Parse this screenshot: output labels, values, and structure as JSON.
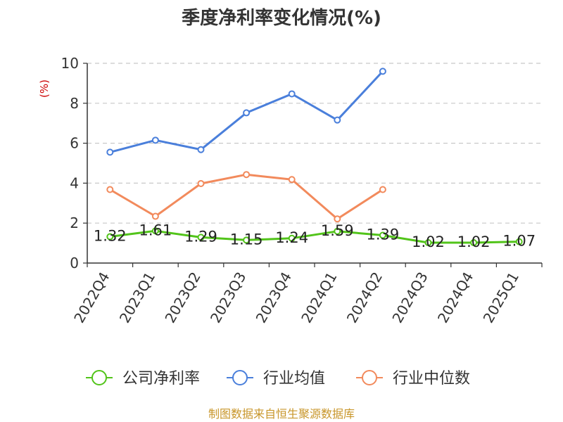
{
  "chart_data": {
    "type": "line",
    "title": "季度净利率变化情况(%)",
    "ylabel": "(%)",
    "ylim": [
      0,
      10
    ],
    "yticks": [
      0,
      2,
      4,
      6,
      8,
      10
    ],
    "grid": "horizontal dashed",
    "legend_position": "bottom",
    "categories": [
      "2022Q4",
      "2023Q1",
      "2023Q2",
      "2023Q3",
      "2023Q4",
      "2024Q1",
      "2024Q2",
      "2024Q3",
      "2024Q4",
      "2025Q1"
    ],
    "series": [
      {
        "name": "公司净利率",
        "color": "#52c41a",
        "labeled": true,
        "values": [
          1.32,
          1.61,
          1.29,
          1.15,
          1.24,
          1.59,
          1.39,
          1.02,
          1.02,
          1.07
        ]
      },
      {
        "name": "行业均值",
        "color": "#4a7fdb",
        "labeled": false,
        "values": [
          5.55,
          6.15,
          5.68,
          7.52,
          8.47,
          7.16,
          9.6,
          null,
          null,
          null
        ]
      },
      {
        "name": "行业中位数",
        "color": "#f28a5c",
        "labeled": false,
        "values": [
          3.68,
          2.34,
          3.98,
          4.43,
          4.18,
          2.21,
          3.68,
          null,
          null,
          null
        ]
      }
    ]
  },
  "footer": "制图数据来自恒生聚源数据库"
}
